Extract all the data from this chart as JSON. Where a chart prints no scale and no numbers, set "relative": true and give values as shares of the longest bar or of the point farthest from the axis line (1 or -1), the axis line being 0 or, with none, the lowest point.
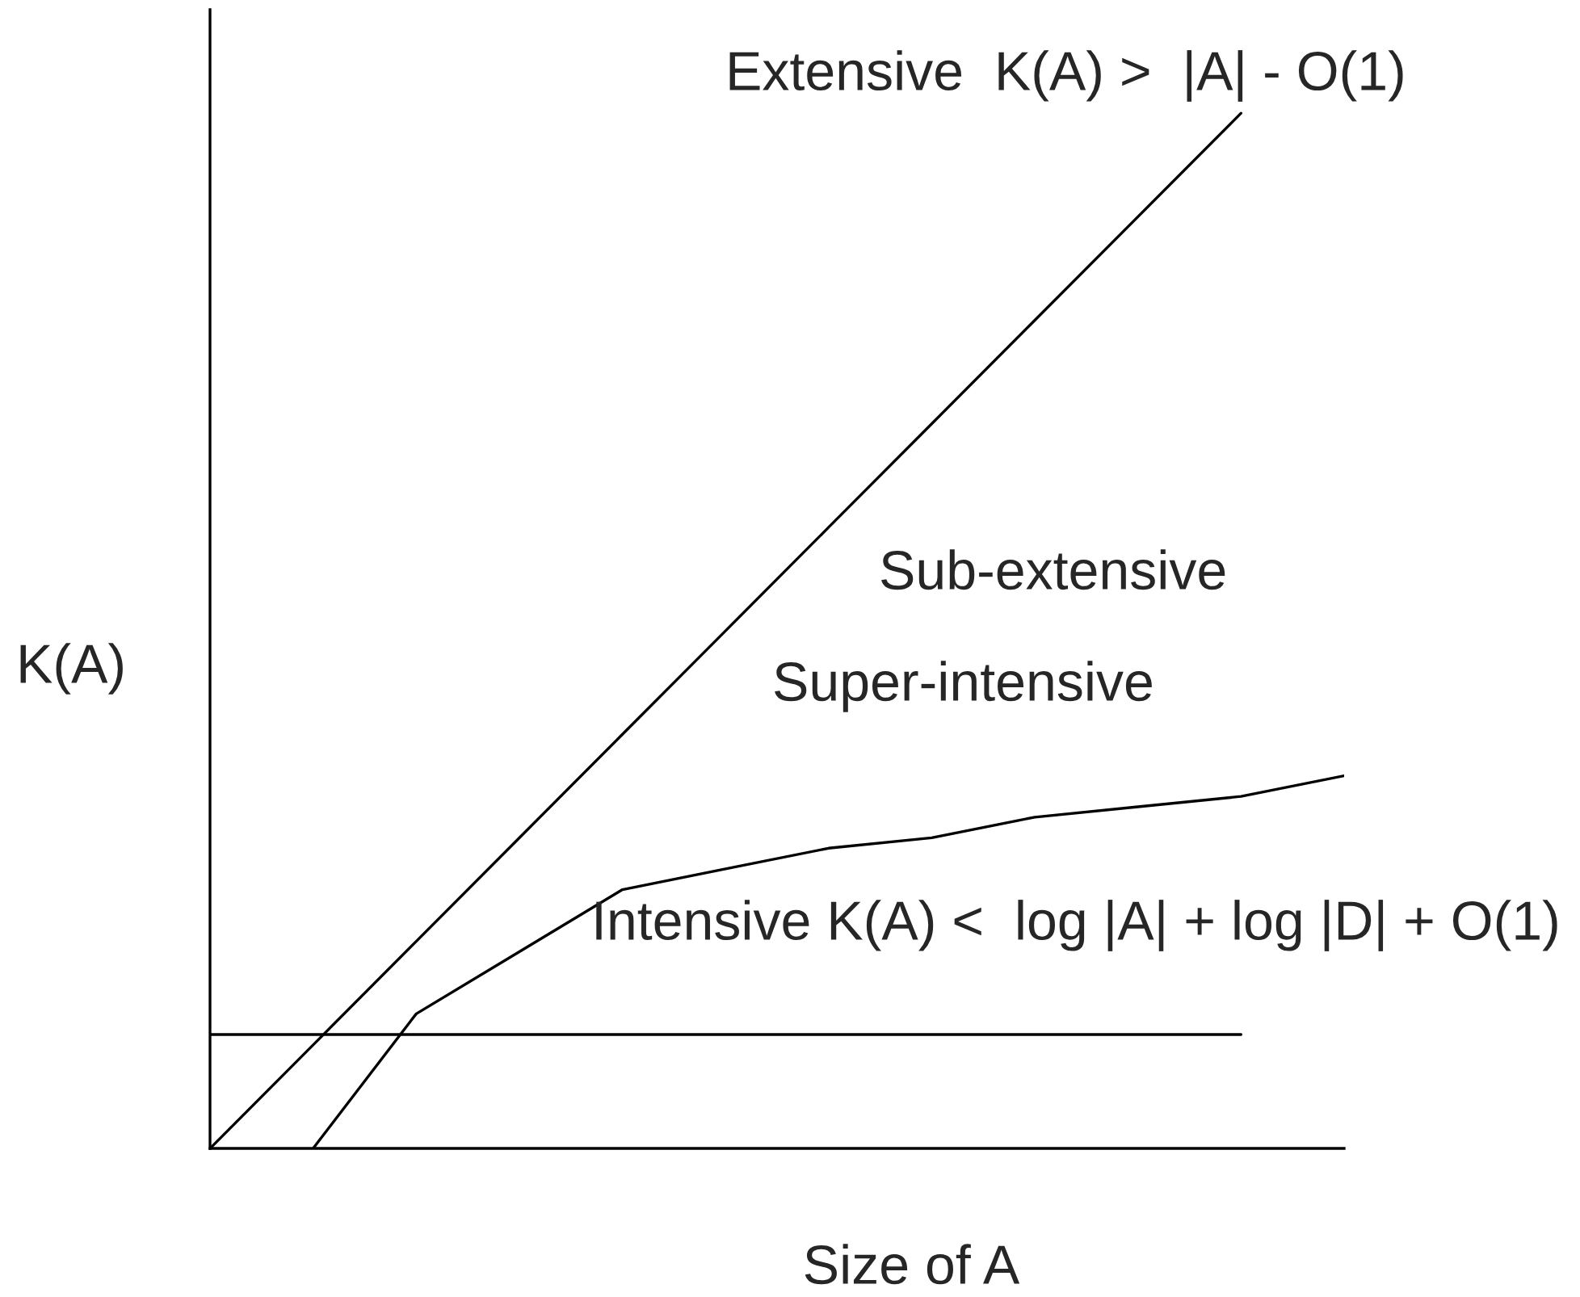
{
  "chart_data": {
    "type": "line",
    "relative": true,
    "xlabel": "Size of A",
    "ylabel": "K(A)",
    "categories": [
      null,
      null,
      null,
      null,
      null,
      null,
      null,
      null,
      null,
      null,
      null,
      null
    ],
    "series": [
      {
        "color": "#000000",
        "values": [
          0,
          0.1,
          0.2,
          0.3,
          0.4,
          0.5,
          0.6,
          0.7,
          0.8,
          0.9,
          1.0,
          null
        ]
      },
      {
        "color": "#000000",
        "values": [
          0.11,
          0.11,
          0.11,
          0.11,
          0.11,
          0.11,
          0.11,
          0.11,
          0.11,
          0.11,
          0.11,
          null
        ]
      },
      {
        "color": "#000000",
        "values": [
          null,
          0.0,
          0.13,
          0.19,
          0.25,
          0.27,
          0.29,
          0.3,
          0.32,
          0.33,
          0.34,
          0.36
        ]
      }
    ],
    "annotations": [
      "Extensive  K(A) >  |A| - O(1)",
      "Sub-extensive",
      "Super-intensive",
      "Intensive K(A) <  log |A| + log |D| + O(1)"
    ]
  }
}
